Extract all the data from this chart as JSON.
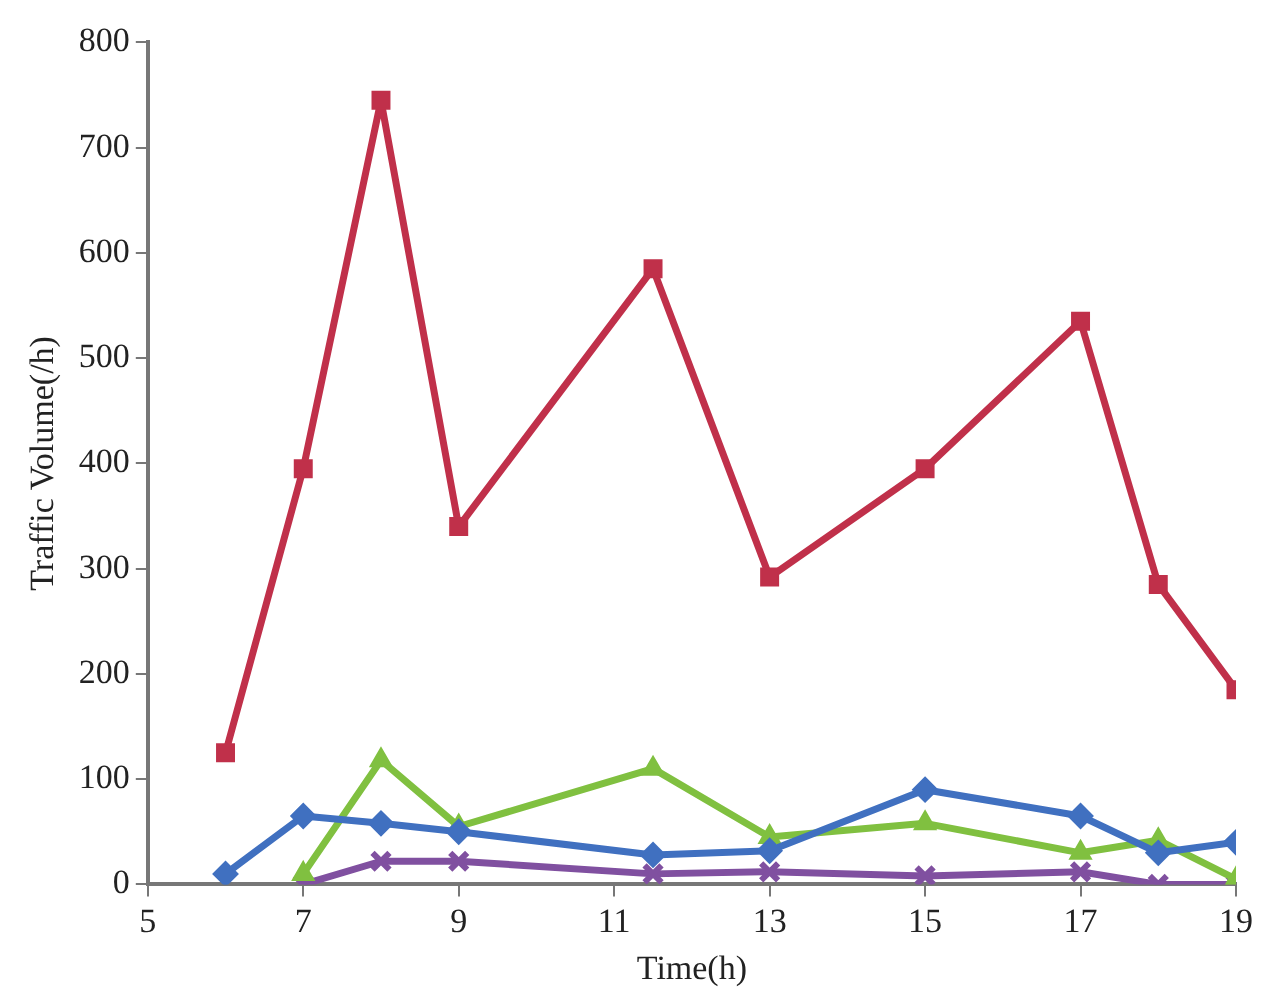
{
  "chart_data": {
    "type": "line",
    "xlabel": "Time(h)",
    "ylabel": "Traffic Volume(/h)",
    "x": [
      6,
      7,
      8,
      9,
      11.5,
      13,
      15,
      17,
      18,
      19
    ],
    "series": [
      {
        "color": "#c0304a",
        "marker": "square",
        "values": [
          125,
          395,
          745,
          340,
          585,
          292,
          395,
          535,
          285,
          185
        ]
      },
      {
        "color": "#4070c0",
        "marker": "diamond",
        "values": [
          10,
          65,
          58,
          50,
          28,
          32,
          90,
          65,
          30,
          40
        ]
      },
      {
        "color": "#80c040",
        "marker": "triangle",
        "values": [
          null,
          10,
          118,
          55,
          110,
          45,
          58,
          30,
          42,
          5
        ]
      },
      {
        "color": "#8050a0",
        "marker": "cross",
        "values": [
          null,
          0,
          22,
          22,
          10,
          12,
          8,
          12,
          0,
          0
        ]
      }
    ],
    "xlim": [
      5,
      19
    ],
    "xticks": [
      5,
      7,
      9,
      11,
      13,
      15,
      17,
      19
    ],
    "ylim": [
      0,
      800
    ],
    "yticks": [
      0,
      100,
      200,
      300,
      400,
      500,
      600,
      700,
      800
    ],
    "grid": false,
    "legend": false
  }
}
